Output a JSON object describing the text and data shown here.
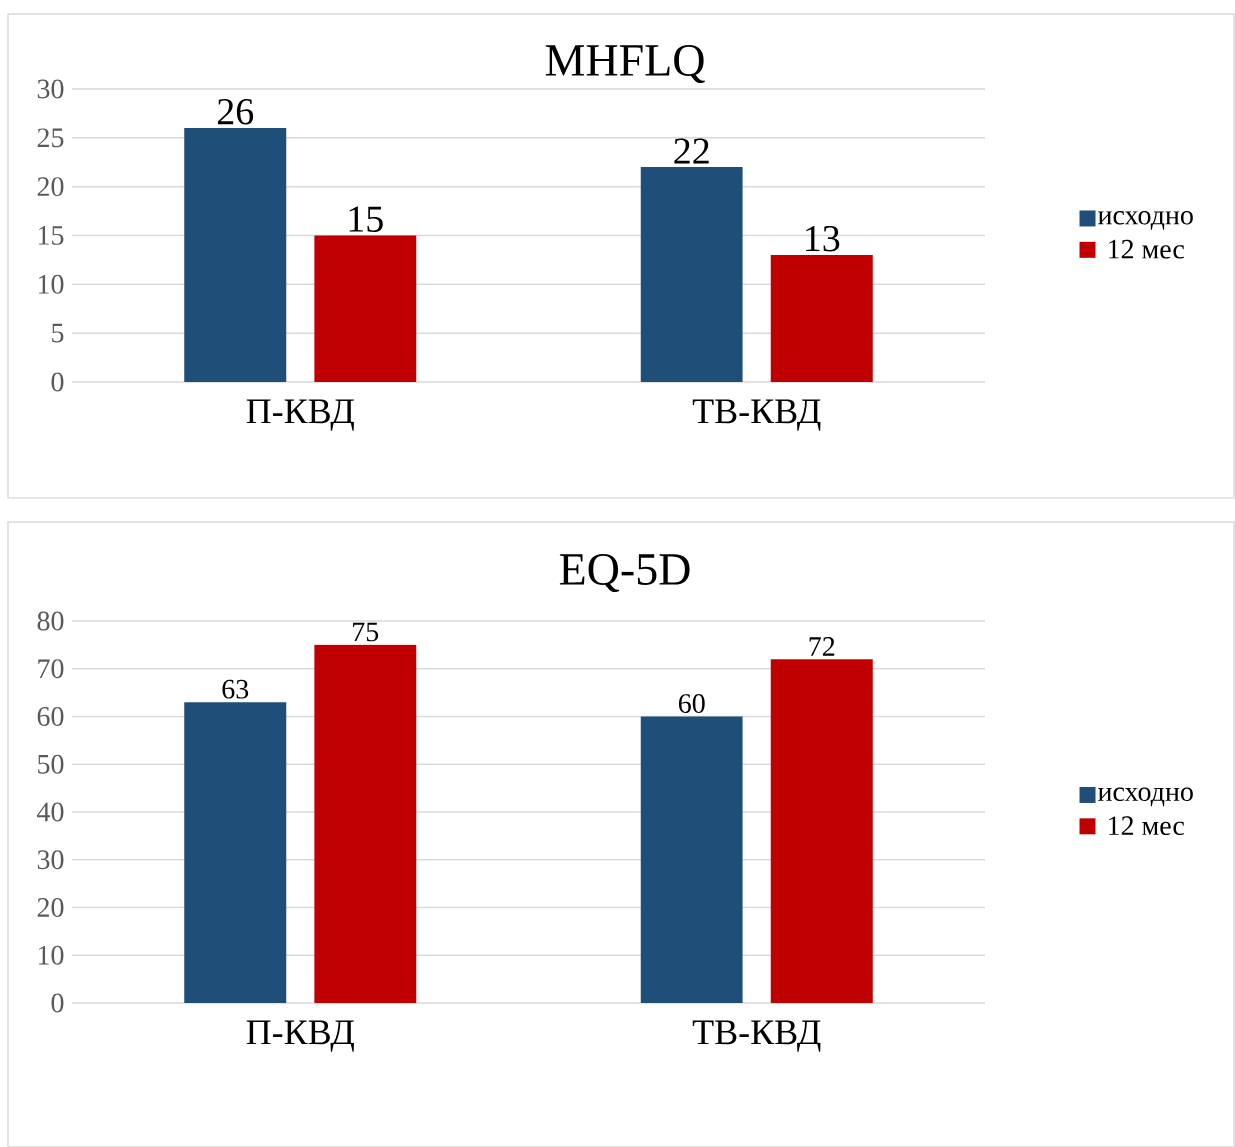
{
  "chart_data": [
    {
      "type": "bar",
      "title": "MHFLQ",
      "categories": [
        "П-КВД",
        "ТВ-КВД"
      ],
      "series": [
        {
          "name": "исходно",
          "color": "#1f4e79",
          "values": [
            26,
            22
          ]
        },
        {
          "name": "12 мес",
          "color": "#c00000",
          "values": [
            15,
            13
          ]
        }
      ],
      "ylim": [
        0,
        30
      ],
      "yticks": [
        0,
        5,
        10,
        15,
        20,
        25,
        30
      ],
      "grid": "y",
      "legend": "right",
      "data_labels": true
    },
    {
      "type": "bar",
      "title": "EQ-5D",
      "categories": [
        "П-КВД",
        "ТВ-КВД"
      ],
      "series": [
        {
          "name": "исходно",
          "color": "#1f4e79",
          "values": [
            63,
            60
          ]
        },
        {
          "name": "12 мес",
          "color": "#c00000",
          "values": [
            75,
            72
          ]
        }
      ],
      "ylim": [
        0,
        80
      ],
      "yticks": [
        0,
        10,
        20,
        30,
        40,
        50,
        60,
        70,
        80
      ],
      "grid": "y",
      "legend": "right",
      "data_labels": true
    }
  ]
}
